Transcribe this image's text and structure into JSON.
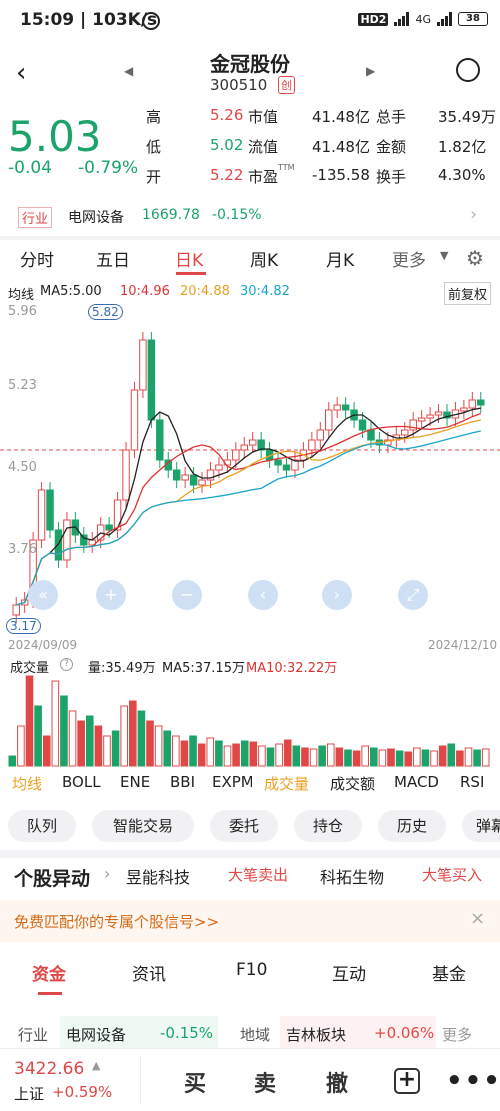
{
  "status": {
    "time": "15:09",
    "speed": "103K/s",
    "network": "4G",
    "hd": "HD2",
    "battery": "38"
  },
  "stock": {
    "name": "金冠股份",
    "code": "300510",
    "board": "创",
    "price": "5.03",
    "change": "-0.04",
    "change_pct": "-0.79%"
  },
  "quote": [
    {
      "l1": "高",
      "v1": "5.26",
      "l2": "市值",
      "v2": "41.48亿",
      "l3": "总手",
      "v3": "35.49万",
      "c1": "red"
    },
    {
      "l1": "低",
      "v1": "5.02",
      "l2": "流值",
      "v2": "41.48亿",
      "l3": "金额",
      "v3": "1.82亿",
      "c1": "green"
    },
    {
      "l1": "开",
      "v1": "5.22",
      "l2": "市盈",
      "v2": "-135.58",
      "l3": "换手",
      "v3": "4.30%",
      "c1": "red"
    }
  ],
  "pe_sup": "TTM",
  "sector": {
    "tag": "行业",
    "name": "电网设备",
    "value": "1669.78",
    "pct": "-0.15%"
  },
  "chart_tabs": [
    "分时",
    "五日",
    "日K",
    "周K",
    "月K",
    "更多"
  ],
  "ma": {
    "label": "均线",
    "ma5": "MA5:5.00",
    "ma10": "10:4.96",
    "ma20": "20:4.88",
    "ma30": "30:4.82",
    "fq": "前复权"
  },
  "axis": {
    "p1": "5.96",
    "p2": "5.23",
    "p3": "4.50",
    "p4": "3.76",
    "start": "2024/09/09",
    "end": "2024/12/10",
    "hi": "5.82",
    "lo": "3.17"
  },
  "volume": {
    "label": "成交量",
    "vol": "量:35.49万",
    "ma5": "MA5:37.15万",
    "ma10": "MA10:32.22万"
  },
  "indicators": [
    "均线",
    "BOLL",
    "ENE",
    "BBI",
    "EXPMA",
    "成交量",
    "成交额",
    "MACD",
    "RSI"
  ],
  "pills": [
    "队列",
    "智能交易",
    "委托",
    "持仓",
    "历史",
    "弹幕"
  ],
  "abn": {
    "title": "个股异动",
    "s1": "昱能科技",
    "a1": "大笔卖出",
    "s2": "科拓生物",
    "a2": "大笔买入"
  },
  "promo": "免费匹配你的专属个股信号>>",
  "bottom_tabs": [
    "资金",
    "资讯",
    "F10",
    "互动",
    "基金"
  ],
  "info": {
    "l1": "行业",
    "n1": "电网设备",
    "p1": "-0.15%",
    "l2": "地域",
    "n2": "吉林板块",
    "p2": "+0.06%",
    "more": "更多"
  },
  "index": {
    "value": "3422.66",
    "name": "上证",
    "pct": "+0.59%"
  },
  "actions": [
    "买",
    "卖",
    "撤"
  ],
  "chart_data": {
    "type": "candlestick",
    "x": [
      "2024/09/09",
      "2024/12/10"
    ],
    "high": 5.82,
    "low": 3.17,
    "ylabels": [
      "5.96",
      "5.23",
      "4.50",
      "3.76"
    ],
    "series": [
      {
        "name": "MA5",
        "value": 5.0
      },
      {
        "name": "MA10",
        "value": 4.96
      },
      {
        "name": "MA20",
        "value": 4.88
      },
      {
        "name": "MA30",
        "value": 4.82
      }
    ]
  }
}
